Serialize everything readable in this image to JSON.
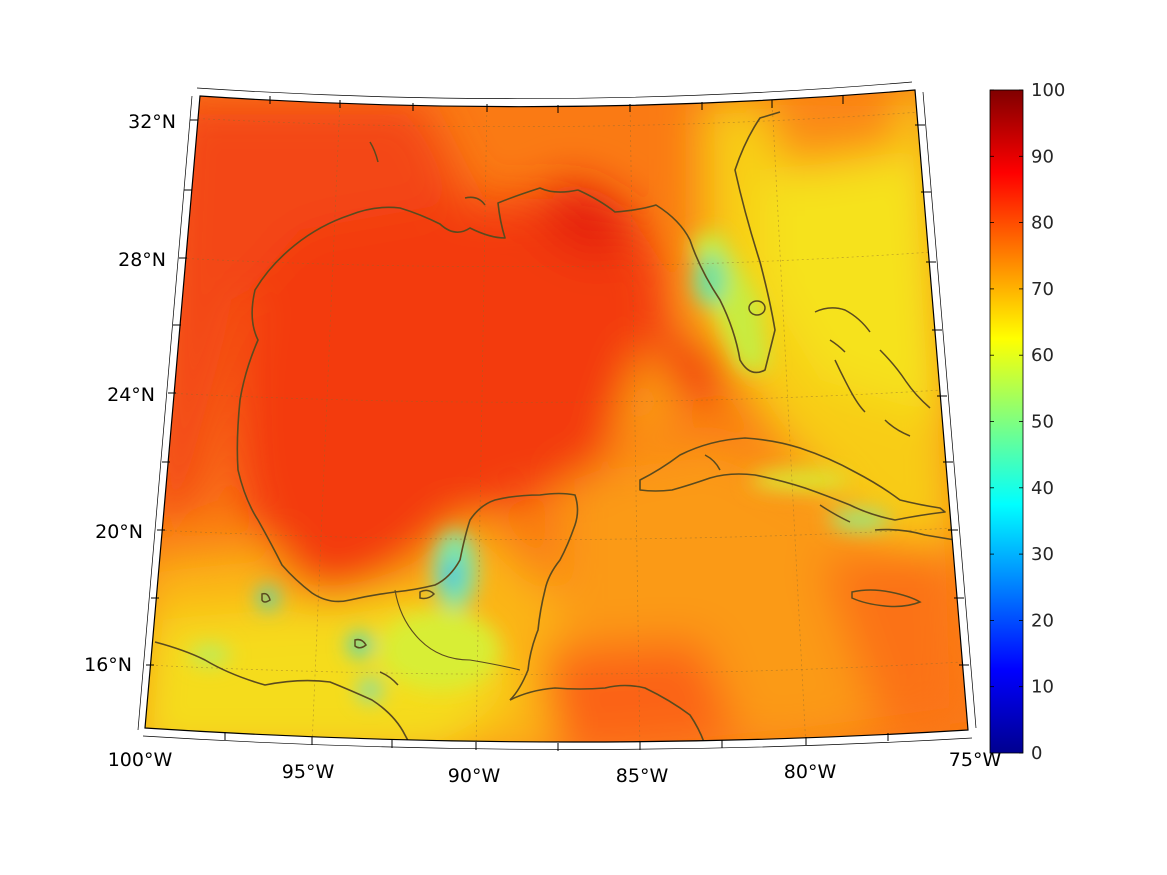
{
  "map": {
    "projection": "conic",
    "lon_range": [
      -100,
      -75
    ],
    "lat_range": [
      14,
      33
    ],
    "grid": true,
    "coastlines": true,
    "lon_ticks": [
      {
        "value": -100,
        "label": "100°W"
      },
      {
        "value": -95,
        "label": "95°W"
      },
      {
        "value": -90,
        "label": "90°W"
      },
      {
        "value": -85,
        "label": "85°W"
      },
      {
        "value": -80,
        "label": "80°W"
      },
      {
        "value": -75,
        "label": "75°W"
      }
    ],
    "lat_ticks": [
      {
        "value": 32,
        "label": "32°N"
      },
      {
        "value": 28,
        "label": "28°N"
      },
      {
        "value": 24,
        "label": "24°N"
      },
      {
        "value": 20,
        "label": "20°N"
      },
      {
        "value": 16,
        "label": "16°N"
      }
    ],
    "field_colors": {
      "deep_red": "#e8200e",
      "red": "#f53b10",
      "orange_red": "#fa6a12",
      "orange": "#fb9416",
      "yellow_orange": "#fcbd10",
      "yellow": "#f2e21a",
      "green_yellow": "#c8ee3c",
      "cyan": "#3fe0d4",
      "blue_cyan": "#2aa8f0",
      "coast": "#5a4a1e"
    }
  },
  "colorbar": {
    "colormap": "jet",
    "min": 0,
    "max": 100,
    "ticks": [
      {
        "value": 100,
        "label": "100"
      },
      {
        "value": 90,
        "label": "90"
      },
      {
        "value": 80,
        "label": "80"
      },
      {
        "value": 70,
        "label": "70"
      },
      {
        "value": 60,
        "label": "60"
      },
      {
        "value": 50,
        "label": "50"
      },
      {
        "value": 40,
        "label": "40"
      },
      {
        "value": 30,
        "label": "30"
      },
      {
        "value": 20,
        "label": "20"
      },
      {
        "value": 10,
        "label": "10"
      },
      {
        "value": 0,
        "label": "0"
      }
    ],
    "stops": [
      "#00008f",
      "#0000ff",
      "#00ffff",
      "#ffff00",
      "#ff0000",
      "#800000"
    ]
  }
}
